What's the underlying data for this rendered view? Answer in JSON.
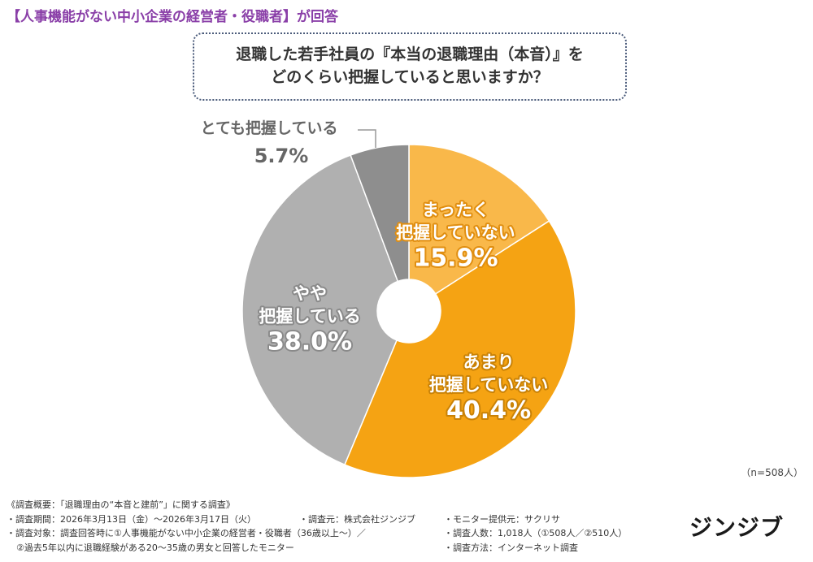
{
  "header": {
    "text": "【人事機能がない中小企業の経営者・役職者】が回答"
  },
  "question": {
    "line1": "退職した若手社員の『本当の退職理由（本音）』を",
    "line2": "どのくらい把握していると思いますか？"
  },
  "chart_data": {
    "type": "pie",
    "categories": [
      "まったく把握していない",
      "あまり把握していない",
      "やや把握している",
      "とても把握している"
    ],
    "values": [
      15.9,
      40.4,
      38.0,
      5.7
    ],
    "unit": "%",
    "colors": [
      "#f9b84a",
      "#f5a313",
      "#b0b0b0",
      "#8e8e8e"
    ],
    "labels": [
      {
        "lines": [
          "まったく",
          "把握していない"
        ],
        "value": "15.9%"
      },
      {
        "lines": [
          "あまり",
          "把握していない"
        ],
        "value": "40.4%"
      },
      {
        "lines": [
          "やや",
          "把握している"
        ],
        "value": "38.0%"
      },
      {
        "lines": [
          "とても把握している"
        ],
        "value": "5.7%"
      }
    ],
    "donut": true,
    "start_angle_deg": 0,
    "direction": "clockwise"
  },
  "sample_size": "（n=508人）",
  "footnotes": {
    "title": "《調査概要：「退職理由の“本音と建前”」に関する調査》",
    "period": "・調査期間：2026年3月13日（金）〜2026年3月17日（火）",
    "organizer": "・調査元：株式会社ジンジブ",
    "provider": "・モニター提供元：サクリサ",
    "target1": "・調査対象：調査回答時に①人事機能がない中小企業の経営者・役職者（36歳以上〜）／",
    "count": "・調査人数：1,018人（①508人／②510人）",
    "target2": "②過去5年以内に退職経験がある20〜35歳の男女と回答したモニター",
    "method": "・調査方法：インターネット調査"
  },
  "logo": {
    "text": "ジンジブ"
  }
}
